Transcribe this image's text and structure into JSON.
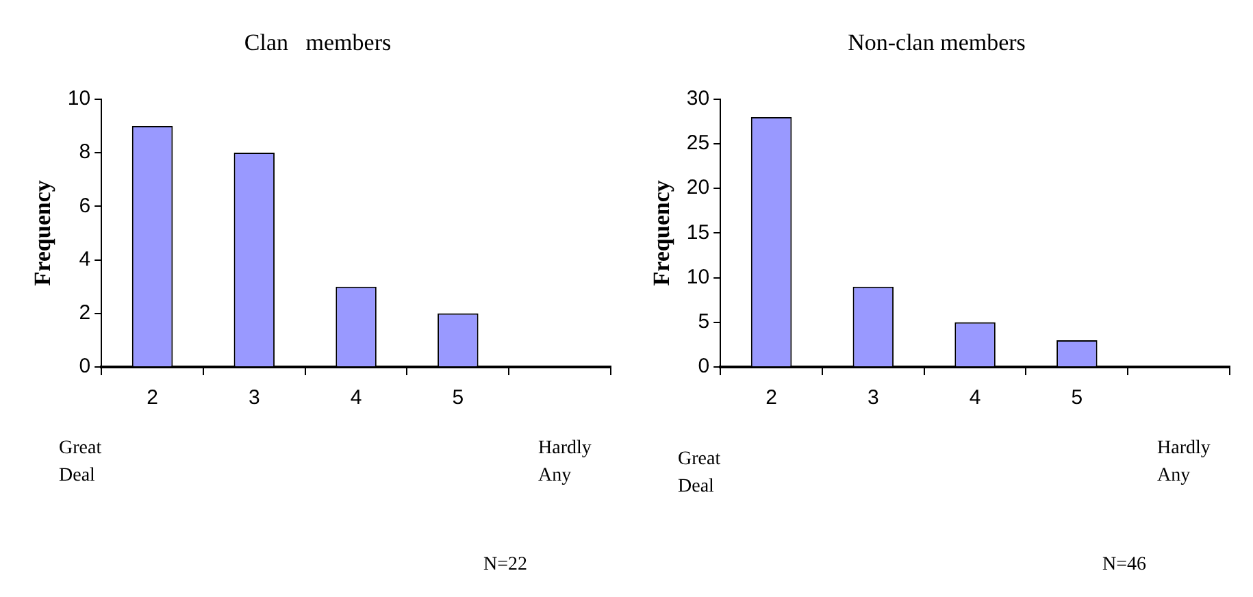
{
  "chart_data": [
    {
      "type": "bar",
      "title": "Clan   members",
      "ylabel": "Frequency",
      "categories": [
        "2",
        "3",
        "4",
        "5",
        null
      ],
      "values": [
        9,
        8,
        3,
        2,
        null
      ],
      "color": "#9999ff",
      "ylim": [
        0,
        10
      ],
      "yticks": [
        0,
        2,
        4,
        6,
        8,
        10
      ],
      "annotations": [
        "Great Deal",
        "Hardly Any",
        "N=22"
      ]
    },
    {
      "type": "bar",
      "title": "Non-clan members",
      "ylabel": "Frequency",
      "categories": [
        "2",
        "3",
        "4",
        "5",
        null
      ],
      "values": [
        28,
        9,
        5,
        3,
        null
      ],
      "color": "#9999ff",
      "ylim": [
        0,
        30
      ],
      "yticks": [
        0,
        5,
        10,
        15,
        20,
        25,
        30
      ],
      "annotations": [
        "Great Deal",
        "Hardly Any",
        "N=46"
      ]
    }
  ]
}
